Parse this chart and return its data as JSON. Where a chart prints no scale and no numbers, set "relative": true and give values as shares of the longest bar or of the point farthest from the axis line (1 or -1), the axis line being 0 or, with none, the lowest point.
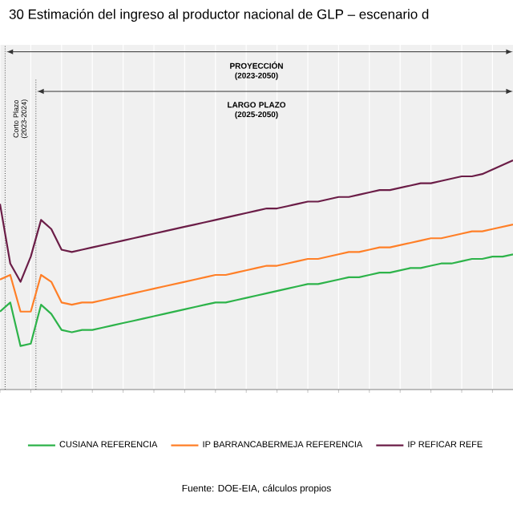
{
  "chart_data": {
    "type": "line",
    "title": "30 Estimación del ingreso al productor nacional de GLP – escenario d",
    "relative": true,
    "grid": "x",
    "legend": "bottom",
    "categories": [
      null,
      null,
      null,
      null,
      null,
      null,
      null,
      null,
      null,
      null,
      null,
      null,
      null,
      null,
      null,
      null,
      null,
      null,
      null,
      null,
      null,
      null,
      null,
      null,
      null,
      null,
      null,
      null,
      null,
      null,
      null,
      null,
      null,
      null,
      null,
      null,
      null,
      null,
      null,
      null,
      null,
      null,
      null,
      null,
      null,
      null,
      null,
      null,
      null,
      null,
      null
    ],
    "series": [
      {
        "name": "CUSIANA REFERENCIA",
        "color": "#2db34a",
        "values": [
          0.34,
          0.38,
          0.19,
          0.2,
          0.37,
          0.33,
          0.26,
          0.25,
          0.26,
          0.26,
          0.27,
          0.28,
          0.29,
          0.3,
          0.31,
          0.32,
          0.33,
          0.34,
          0.35,
          0.36,
          0.37,
          0.38,
          0.38,
          0.39,
          0.4,
          0.41,
          0.42,
          0.43,
          0.44,
          0.45,
          0.46,
          0.46,
          0.47,
          0.48,
          0.49,
          0.49,
          0.5,
          0.51,
          0.51,
          0.52,
          0.53,
          0.53,
          0.54,
          0.55,
          0.55,
          0.56,
          0.57,
          0.57,
          0.58,
          0.58,
          0.59
        ]
      },
      {
        "name": "IP BARRANCABERMEJA REFERENCIA",
        "color": "#ff7f27",
        "values": [
          0.48,
          0.5,
          0.34,
          0.34,
          0.5,
          0.47,
          0.38,
          0.37,
          0.38,
          0.38,
          0.39,
          0.4,
          0.41,
          0.42,
          0.43,
          0.44,
          0.45,
          0.46,
          0.47,
          0.48,
          0.49,
          0.5,
          0.5,
          0.51,
          0.52,
          0.53,
          0.54,
          0.54,
          0.55,
          0.56,
          0.57,
          0.57,
          0.58,
          0.59,
          0.6,
          0.6,
          0.61,
          0.62,
          0.62,
          0.63,
          0.64,
          0.65,
          0.66,
          0.66,
          0.67,
          0.68,
          0.69,
          0.69,
          0.7,
          0.71,
          0.72
        ]
      },
      {
        "name": "IP REFICAR REFE",
        "color": "#6b1d47",
        "values": [
          0.81,
          0.55,
          0.47,
          0.58,
          0.74,
          0.7,
          0.61,
          0.6,
          0.61,
          0.62,
          0.63,
          0.64,
          0.65,
          0.66,
          0.67,
          0.68,
          0.69,
          0.7,
          0.71,
          0.72,
          0.73,
          0.74,
          0.75,
          0.76,
          0.77,
          0.78,
          0.79,
          0.79,
          0.8,
          0.81,
          0.82,
          0.82,
          0.83,
          0.84,
          0.84,
          0.85,
          0.86,
          0.87,
          0.87,
          0.88,
          0.89,
          0.9,
          0.9,
          0.91,
          0.92,
          0.93,
          0.93,
          0.94,
          0.96,
          0.98,
          1.0
        ]
      }
    ],
    "annotations": [
      "PROYECCIÓN (2023-2050)",
      "LARGO PLAZO (2025-2050)",
      "Corto Plazo (2023-2024)",
      "Fuente: DOE-EIA, cálculos propios"
    ]
  }
}
